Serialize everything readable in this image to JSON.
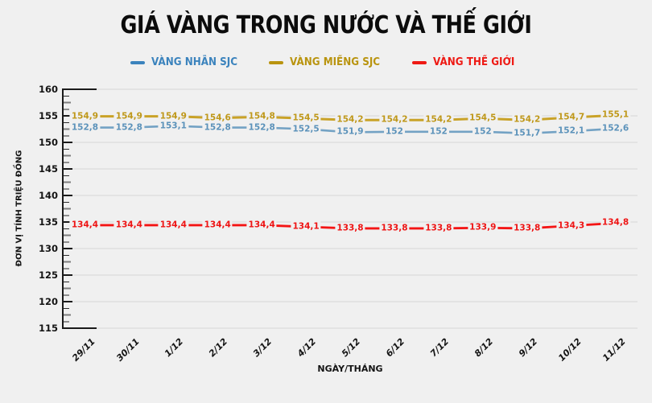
{
  "title": "GIÁ VÀNG TRONG NƯỚC VÀ THẾ GIỚI",
  "legend": [
    {
      "label": "VÀNG NHẪN SJC",
      "color": "#3b83bd"
    },
    {
      "label": "VÀNG MIẾNG SJC",
      "color": "#b9940f"
    },
    {
      "label": "VÀNG THẾ GIỚI",
      "color": "#ee1a14"
    }
  ],
  "chart_data": {
    "type": "line",
    "categories": [
      "29/11",
      "30/11",
      "1/12",
      "2/12",
      "3/12",
      "4/12",
      "5/12",
      "6/12",
      "7/12",
      "8/12",
      "9/12",
      "10/12",
      "11/12"
    ],
    "series": [
      {
        "name": "VÀNG NHẪN SJC",
        "color": "#73a2c4",
        "label_color": "#5b92ba",
        "values": [
          152.8,
          152.8,
          153.1,
          152.8,
          152.8,
          152.5,
          151.9,
          152,
          152,
          152,
          151.7,
          152.1,
          152.6
        ]
      },
      {
        "name": "VÀNG MIẾNG SJC",
        "color": "#c9a227",
        "label_color": "#bf981a",
        "values": [
          154.9,
          154.9,
          154.9,
          154.6,
          154.8,
          154.5,
          154.2,
          154.2,
          154.2,
          154.5,
          154.2,
          154.7,
          155.1
        ]
      },
      {
        "name": "VÀNG THẾ GIỚI",
        "color": "#f41414",
        "label_color": "#ee1414",
        "values": [
          134.4,
          134.4,
          134.4,
          134.4,
          134.4,
          134.1,
          133.8,
          133.8,
          133.8,
          133.9,
          133.8,
          134.3,
          134.8
        ]
      }
    ],
    "xlabel": "NGÀY/THÁNG",
    "ylabel": "ĐƠN VỊ TÍNH TRIỆU ĐỒNG",
    "ylim": [
      115,
      160
    ],
    "ytick_step": 5,
    "grid": true,
    "legend_position": "top",
    "decimal_separator": ","
  }
}
